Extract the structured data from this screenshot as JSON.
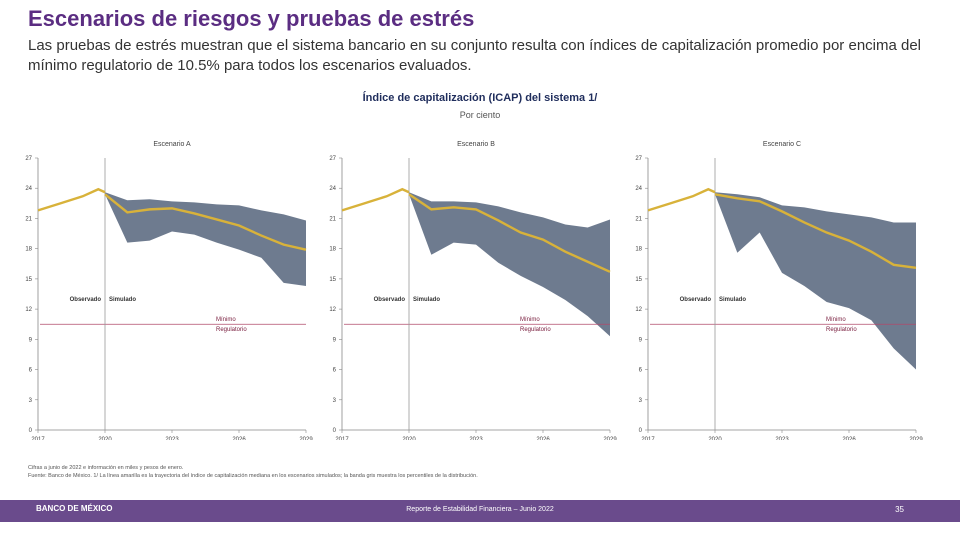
{
  "title": "Escenarios de riesgos y pruebas de estrés",
  "intro": "Las pruebas de estrés muestran que el sistema bancario en su conjunto resulta con índices de capitalización promedio por encima del mínimo regulatorio de 10.5% para todos los escenarios evaluados.",
  "chart_heading": "Índice de capitalización (ICAP) del sistema 1/",
  "chart_unit": "Por ciento",
  "labels": {
    "observed": "Observado",
    "simulated": "Simulado",
    "minimum_l1": "Mínimo",
    "minimum_l2": "Regulatorio"
  },
  "colors": {
    "title": "#5b2d82",
    "band": "#6e7b8f",
    "median": "#d8b23a",
    "minimum_line": "#b04a6a",
    "footer": "#6a4b8c"
  },
  "notes": [
    "Cifras a junio de 2022 e información en miles y pesos de enero.",
    "Fuente: Banco de México. 1/ La línea amarilla es la trayectoria del índice de capitalización mediana en los escenarios simulados; la banda gris muestra los percentiles de la distribución."
  ],
  "footer": {
    "logo": "BANCO DE MÉXICO",
    "text": "Reporte de Estabilidad Financiera – Junio 2022",
    "page": "35"
  },
  "chart_data": [
    {
      "type": "area",
      "title": "Escenario A",
      "x_ticks": [
        "2017",
        "2020",
        "2023",
        "2026",
        "2029"
      ],
      "y_ticks": [
        0,
        3,
        6,
        9,
        12,
        15,
        18,
        21,
        24,
        27
      ],
      "ylim": [
        0,
        27
      ],
      "observed_until": 2020,
      "minimum_regulatory": 10.5,
      "observed": [
        [
          2017,
          21.8
        ],
        [
          2018,
          22.5
        ],
        [
          2019,
          23.2
        ],
        [
          2019.7,
          23.9
        ],
        [
          2020,
          23.6
        ]
      ],
      "median": [
        [
          2020,
          23.4
        ],
        [
          2021,
          21.6
        ],
        [
          2022,
          21.9
        ],
        [
          2023,
          22.0
        ],
        [
          2024,
          21.5
        ],
        [
          2025,
          20.9
        ],
        [
          2026,
          20.3
        ],
        [
          2027,
          19.3
        ],
        [
          2028,
          18.4
        ],
        [
          2029,
          17.9
        ]
      ],
      "band_upper": [
        [
          2020,
          23.6
        ],
        [
          2021,
          22.8
        ],
        [
          2022,
          22.9
        ],
        [
          2023,
          22.7
        ],
        [
          2024,
          22.6
        ],
        [
          2025,
          22.4
        ],
        [
          2026,
          22.3
        ],
        [
          2027,
          21.8
        ],
        [
          2028,
          21.4
        ],
        [
          2029,
          20.8
        ]
      ],
      "band_lower": [
        [
          2020,
          23.4
        ],
        [
          2021,
          18.6
        ],
        [
          2022,
          18.8
        ],
        [
          2023,
          19.7
        ],
        [
          2024,
          19.4
        ],
        [
          2025,
          18.6
        ],
        [
          2026,
          17.9
        ],
        [
          2027,
          17.1
        ],
        [
          2028,
          14.6
        ],
        [
          2029,
          14.3
        ]
      ]
    },
    {
      "type": "area",
      "title": "Escenario B",
      "x_ticks": [
        "2017",
        "2020",
        "2023",
        "2026",
        "2029"
      ],
      "y_ticks": [
        0,
        3,
        6,
        9,
        12,
        15,
        18,
        21,
        24,
        27
      ],
      "ylim": [
        0,
        27
      ],
      "observed_until": 2020,
      "minimum_regulatory": 10.5,
      "observed": [
        [
          2017,
          21.8
        ],
        [
          2018,
          22.5
        ],
        [
          2019,
          23.2
        ],
        [
          2019.7,
          23.9
        ],
        [
          2020,
          23.6
        ]
      ],
      "median": [
        [
          2020,
          23.4
        ],
        [
          2021,
          21.9
        ],
        [
          2022,
          22.1
        ],
        [
          2023,
          21.9
        ],
        [
          2024,
          20.8
        ],
        [
          2025,
          19.6
        ],
        [
          2026,
          18.9
        ],
        [
          2027,
          17.7
        ],
        [
          2028,
          16.7
        ],
        [
          2029,
          15.7
        ]
      ],
      "band_upper": [
        [
          2020,
          23.6
        ],
        [
          2021,
          22.7
        ],
        [
          2022,
          22.7
        ],
        [
          2023,
          22.6
        ],
        [
          2024,
          22.2
        ],
        [
          2025,
          21.6
        ],
        [
          2026,
          21.1
        ],
        [
          2027,
          20.4
        ],
        [
          2028,
          20.1
        ],
        [
          2029,
          20.9
        ]
      ],
      "band_lower": [
        [
          2020,
          23.4
        ],
        [
          2021,
          17.4
        ],
        [
          2022,
          18.6
        ],
        [
          2023,
          18.4
        ],
        [
          2024,
          16.6
        ],
        [
          2025,
          15.3
        ],
        [
          2026,
          14.2
        ],
        [
          2027,
          12.9
        ],
        [
          2028,
          11.3
        ],
        [
          2029,
          9.3
        ]
      ]
    },
    {
      "type": "area",
      "title": "Escenario C",
      "x_ticks": [
        "2017",
        "2020",
        "2023",
        "2026",
        "2029"
      ],
      "y_ticks": [
        0,
        3,
        6,
        9,
        12,
        15,
        18,
        21,
        24,
        27
      ],
      "ylim": [
        0,
        27
      ],
      "observed_until": 2020,
      "minimum_regulatory": 10.5,
      "observed": [
        [
          2017,
          21.8
        ],
        [
          2018,
          22.5
        ],
        [
          2019,
          23.2
        ],
        [
          2019.7,
          23.9
        ],
        [
          2020,
          23.6
        ]
      ],
      "median": [
        [
          2020,
          23.4
        ],
        [
          2021,
          23.0
        ],
        [
          2022,
          22.7
        ],
        [
          2023,
          21.7
        ],
        [
          2024,
          20.6
        ],
        [
          2025,
          19.6
        ],
        [
          2026,
          18.8
        ],
        [
          2027,
          17.7
        ],
        [
          2028,
          16.4
        ],
        [
          2029,
          16.1
        ]
      ],
      "band_upper": [
        [
          2020,
          23.6
        ],
        [
          2021,
          23.4
        ],
        [
          2022,
          23.1
        ],
        [
          2023,
          22.3
        ],
        [
          2024,
          22.1
        ],
        [
          2025,
          21.7
        ],
        [
          2026,
          21.4
        ],
        [
          2027,
          21.1
        ],
        [
          2028,
          20.6
        ],
        [
          2029,
          20.6
        ]
      ],
      "band_lower": [
        [
          2020,
          23.4
        ],
        [
          2021,
          17.6
        ],
        [
          2022,
          19.6
        ],
        [
          2023,
          15.6
        ],
        [
          2024,
          14.3
        ],
        [
          2025,
          12.7
        ],
        [
          2026,
          12.1
        ],
        [
          2027,
          10.9
        ],
        [
          2028,
          8.1
        ],
        [
          2029,
          6.0
        ]
      ]
    }
  ]
}
